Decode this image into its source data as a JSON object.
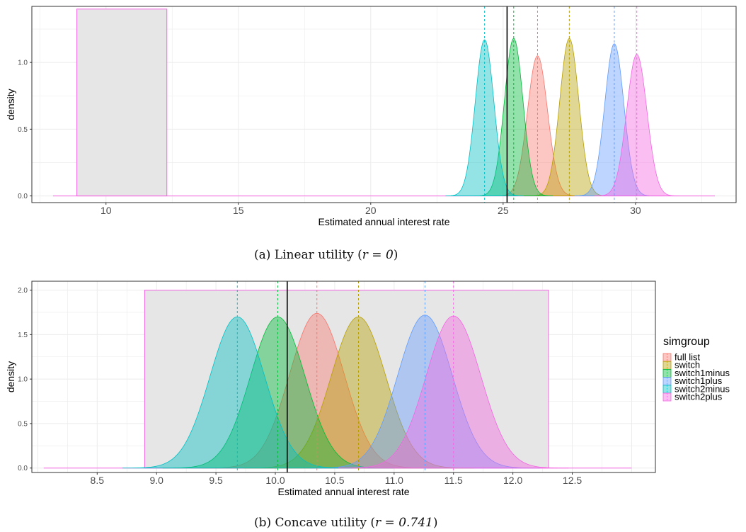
{
  "chart_data": [
    {
      "type": "area",
      "subplot": "a",
      "caption": "(a) Linear utility (r = 0)",
      "caption_prefix": "(a) Linear utility (",
      "caption_math": "r = 0",
      "caption_suffix": ")",
      "xlabel": "Estimated annual interest rate",
      "ylabel": "density",
      "xlim": [
        7.2,
        33.8
      ],
      "ylim": [
        -0.05,
        1.42
      ],
      "xticks": [
        10,
        15,
        20,
        25,
        30
      ],
      "xtick_labels": [
        "10",
        "15",
        "20",
        "25",
        "30"
      ],
      "yticks": [
        0.0,
        0.5,
        1.0
      ],
      "ytick_labels": [
        "0.0",
        "0.5",
        "1.0"
      ],
      "grid": true,
      "panel_background": "#ffffff",
      "shaded_region": {
        "x": [
          8.9,
          12.3
        ],
        "ymax": 1.4
      },
      "baseline_range": [
        8.0,
        33.0
      ],
      "vertical_line": 25.15,
      "series": [
        {
          "name": "full list",
          "color": "#F8766D",
          "mean": 26.3,
          "sd": 0.38,
          "peak": 1.05
        },
        {
          "name": "switch",
          "color": "#B79F00",
          "mean": 27.5,
          "sd": 0.36,
          "peak": 1.18
        },
        {
          "name": "switch1minus",
          "color": "#00BA38",
          "mean": 25.4,
          "sd": 0.35,
          "peak": 1.18
        },
        {
          "name": "switch1plus",
          "color": "#619CFF",
          "mean": 29.2,
          "sd": 0.36,
          "peak": 1.14
        },
        {
          "name": "switch2minus",
          "color": "#00BFC4",
          "mean": 24.3,
          "sd": 0.35,
          "peak": 1.17
        },
        {
          "name": "switch2plus",
          "color": "#F564E3",
          "mean": 30.05,
          "sd": 0.38,
          "peak": 1.06
        }
      ]
    },
    {
      "type": "area",
      "subplot": "b",
      "caption": "(b) Concave utility (r = 0.741)",
      "caption_prefix": "(b) Concave utility (",
      "caption_math": "r = 0.741",
      "caption_suffix": ")",
      "xlabel": "Estimated annual interest rate",
      "ylabel": "density",
      "xlim": [
        7.95,
        13.2
      ],
      "ylim": [
        -0.05,
        2.1
      ],
      "xticks": [
        8.5,
        9.0,
        9.5,
        10.0,
        10.5,
        11.0,
        11.5,
        12.0,
        12.5
      ],
      "xtick_labels": [
        "8.5",
        "9.0",
        "9.5",
        "10.0",
        "10.5",
        "11.0",
        "11.5",
        "12.0",
        "12.5"
      ],
      "yticks": [
        0.0,
        0.5,
        1.0,
        1.5,
        2.0
      ],
      "ytick_labels": [
        "0.0",
        "0.5",
        "1.0",
        "1.5",
        "2.0"
      ],
      "grid": true,
      "panel_background": "#ffffff",
      "shaded_region": {
        "x": [
          8.9,
          12.3
        ],
        "ymax": 2.0
      },
      "baseline_range": [
        8.05,
        13.0
      ],
      "vertical_line": 10.1,
      "legend": {
        "title": "simgroup",
        "position": "right",
        "items": [
          "full list",
          "switch",
          "switch1minus",
          "switch1plus",
          "switch2minus",
          "switch2plus"
        ]
      },
      "series": [
        {
          "name": "full list",
          "color": "#F8766D",
          "mean": 10.35,
          "sd": 0.23,
          "peak": 1.74
        },
        {
          "name": "switch",
          "color": "#B79F00",
          "mean": 10.7,
          "sd": 0.23,
          "peak": 1.7
        },
        {
          "name": "switch1minus",
          "color": "#00BA38",
          "mean": 10.02,
          "sd": 0.23,
          "peak": 1.7
        },
        {
          "name": "switch1plus",
          "color": "#619CFF",
          "mean": 11.26,
          "sd": 0.23,
          "peak": 1.72
        },
        {
          "name": "switch2minus",
          "color": "#00BFC4",
          "mean": 9.68,
          "sd": 0.23,
          "peak": 1.7
        },
        {
          "name": "switch2plus",
          "color": "#F564E3",
          "mean": 11.5,
          "sd": 0.23,
          "peak": 1.71
        }
      ]
    }
  ]
}
